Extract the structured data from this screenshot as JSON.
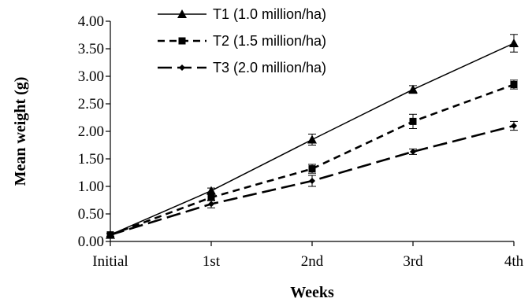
{
  "chart_data": {
    "type": "line",
    "title": "",
    "xlabel": "Weeks",
    "ylabel": "Mean weight (g)",
    "categories": [
      "Initial",
      "1st",
      "2nd",
      "3rd",
      "4th"
    ],
    "ylim": [
      0,
      4
    ],
    "yticks": [
      "0.00",
      "0.50",
      "1.00",
      "1.50",
      "2.00",
      "2.50",
      "3.00",
      "3.50",
      "4.00"
    ],
    "grid": false,
    "legend_position": "top-center",
    "series": [
      {
        "name": "T1 (1.0 million/ha)",
        "values": [
          0.12,
          0.92,
          1.85,
          2.76,
          3.6
        ],
        "errors": [
          0.03,
          0.05,
          0.1,
          0.07,
          0.16
        ],
        "marker": "triangle",
        "line_style": "solid"
      },
      {
        "name": "T2 (1.5 million/ha)",
        "values": [
          0.12,
          0.8,
          1.32,
          2.18,
          2.85
        ],
        "errors": [
          0.03,
          0.06,
          0.08,
          0.13,
          0.08
        ],
        "marker": "square",
        "line_style": "dashed"
      },
      {
        "name": "T3 (2.0 million/ha)",
        "values": [
          0.12,
          0.68,
          1.1,
          1.63,
          2.1
        ],
        "errors": [
          0.03,
          0.07,
          0.1,
          0.05,
          0.08
        ],
        "marker": "diamond",
        "line_style": "long-dash"
      }
    ]
  }
}
